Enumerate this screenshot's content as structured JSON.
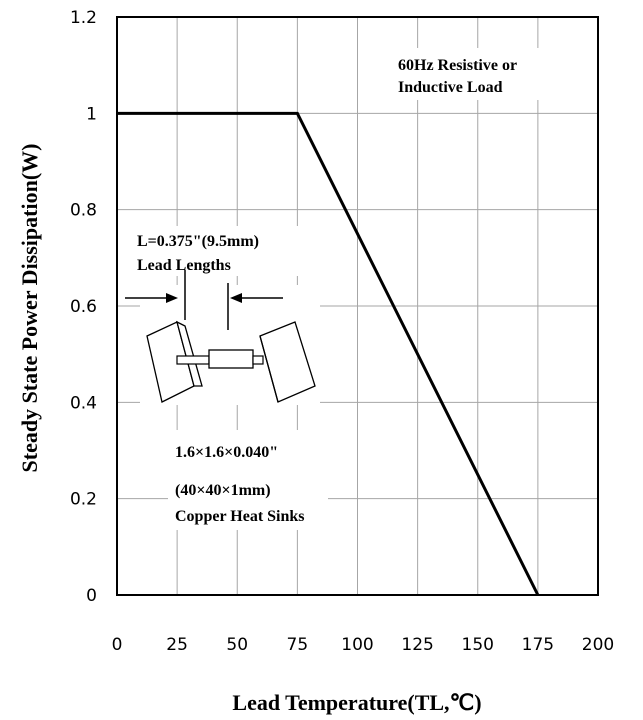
{
  "chart_data": {
    "type": "line",
    "title": "",
    "xlabel": "Lead Temperature(TL,℃)",
    "ylabel": "Steady State Power Dissipation(W)",
    "xlim": [
      0,
      200
    ],
    "ylim": [
      0,
      1.2
    ],
    "x_ticks": [
      "0",
      "25",
      "50",
      "75",
      "100",
      "125",
      "150",
      "175",
      "200"
    ],
    "y_ticks": [
      "0",
      "0.2",
      "0.4",
      "0.6",
      "0.8",
      "1",
      "1.2"
    ],
    "grid": true,
    "series": [
      {
        "x": [
          0,
          75,
          175
        ],
        "y": [
          1,
          1,
          0
        ]
      }
    ],
    "annotations": {
      "load_line1": "60Hz Resistive or",
      "load_line2": "Inductive Load",
      "lead_line1": "L=0.375\"(9.5mm)",
      "lead_line2": "Lead Lengths",
      "sink_line1": "1.6×1.6×0.040\"",
      "sink_line2": "(40×40×1mm)",
      "sink_line3": "Copper Heat Sinks"
    }
  }
}
